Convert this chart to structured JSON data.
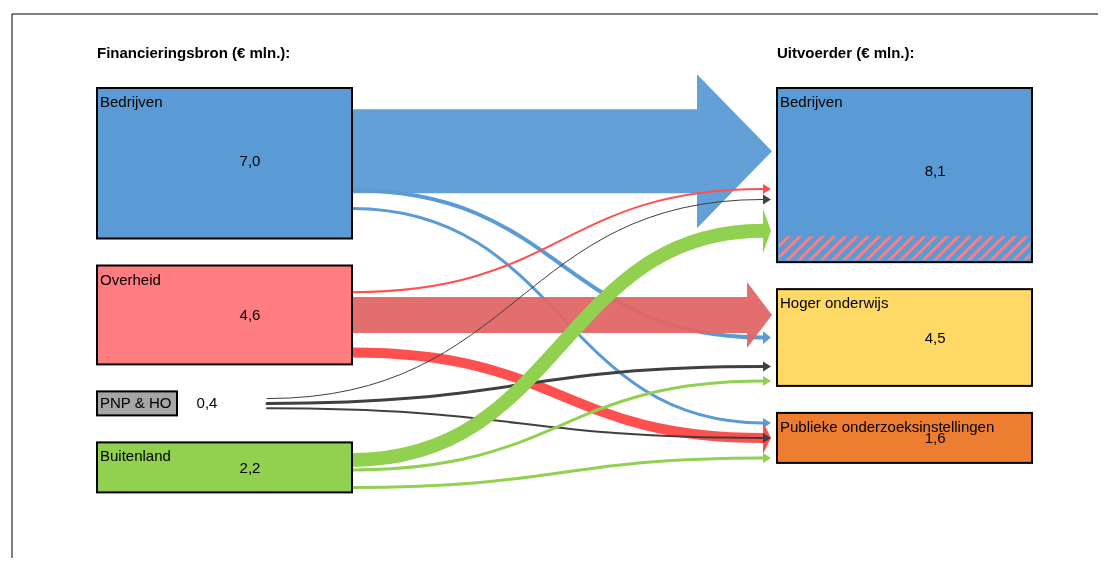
{
  "chart_data": {
    "type": "other",
    "categories": [
      "Bedrijven",
      "Overheid",
      "PNP & HO",
      "Buitenland",
      "Bedrijven",
      "Hoger onderwijs",
      "Publieke onderzoeksinstellingen"
    ],
    "series": [
      {
        "name": "Financieringsbron (€ mln.):",
        "values": [
          7.0,
          4.6,
          0.4,
          2.2,
          null,
          null,
          null
        ],
        "value_labels": [
          "7,0",
          "4,6",
          "0,4",
          "2,2",
          null,
          null,
          null
        ],
        "colors": [
          "#5b9bd5",
          "#ff7c80",
          "#a6a6a6",
          "#92d050",
          null,
          null,
          null
        ]
      },
      {
        "name": "Uitvoerder (€ mln.):",
        "values": [
          null,
          null,
          null,
          null,
          8.1,
          4.5,
          1.6
        ],
        "value_labels": [
          null,
          null,
          null,
          null,
          "8,1",
          "4,5",
          "1,6"
        ],
        "colors": [
          null,
          null,
          null,
          null,
          "#5b9bd5",
          "#ffd966",
          "#ed7d31"
        ]
      }
    ]
  }
}
